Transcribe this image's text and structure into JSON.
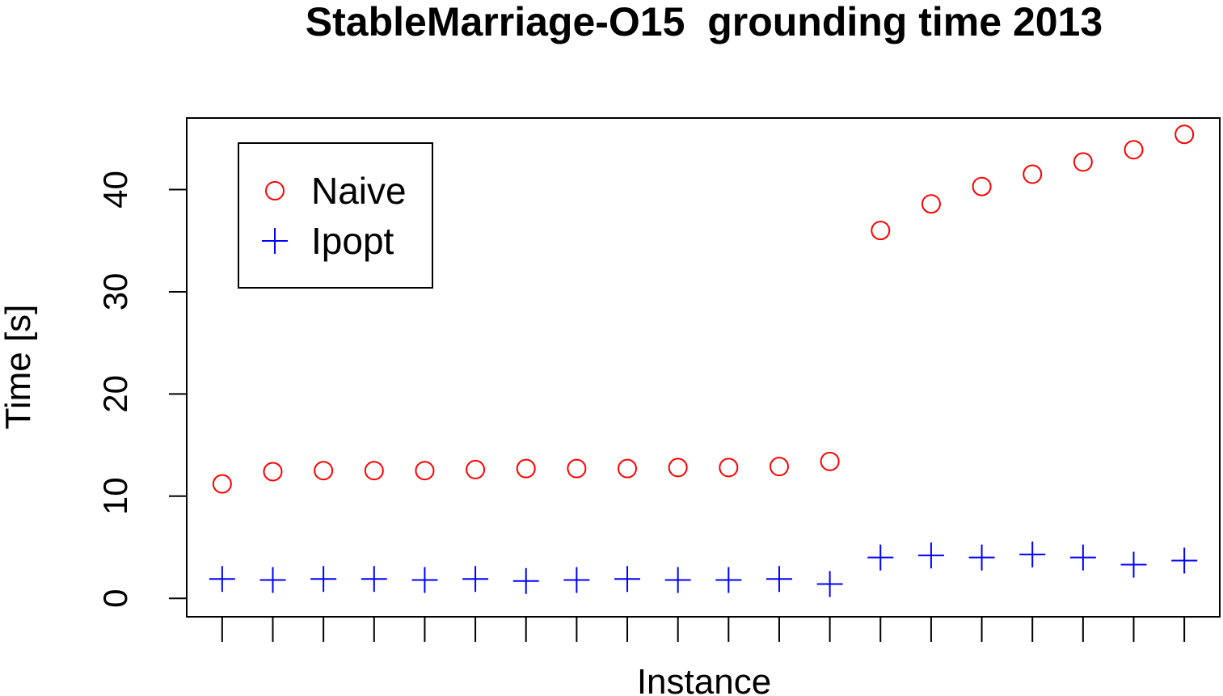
{
  "chart_data": {
    "type": "scatter",
    "title": "StableMarriage-O15  grounding time 2013",
    "xlabel": "Instance",
    "ylabel": "Time [s]",
    "x": [
      1,
      2,
      3,
      4,
      5,
      6,
      7,
      8,
      9,
      10,
      11,
      12,
      13,
      14,
      15,
      16,
      17,
      18,
      19,
      20
    ],
    "xlim": [
      0.3,
      20.7
    ],
    "ylim": [
      -1.8,
      47
    ],
    "yticks": [
      0,
      10,
      20,
      30,
      40
    ],
    "ytick_labels": [
      "0",
      "10",
      "20",
      "30",
      "40"
    ],
    "xtick_labels": [],
    "grid": false,
    "legend_position": "top-left",
    "series": [
      {
        "name": "Naive",
        "marker": "circle",
        "color": "#ff0000",
        "values": [
          11.2,
          12.4,
          12.5,
          12.5,
          12.5,
          12.6,
          12.7,
          12.7,
          12.7,
          12.8,
          12.8,
          12.9,
          13.4,
          36.0,
          38.6,
          40.3,
          41.5,
          42.7,
          43.9,
          45.4
        ]
      },
      {
        "name": "Ipopt",
        "marker": "plus",
        "color": "#0000ff",
        "values": [
          1.9,
          1.8,
          1.9,
          1.9,
          1.8,
          1.9,
          1.7,
          1.8,
          1.9,
          1.8,
          1.8,
          1.9,
          1.4,
          4.0,
          4.2,
          4.0,
          4.3,
          4.0,
          3.3,
          3.7
        ]
      }
    ]
  }
}
